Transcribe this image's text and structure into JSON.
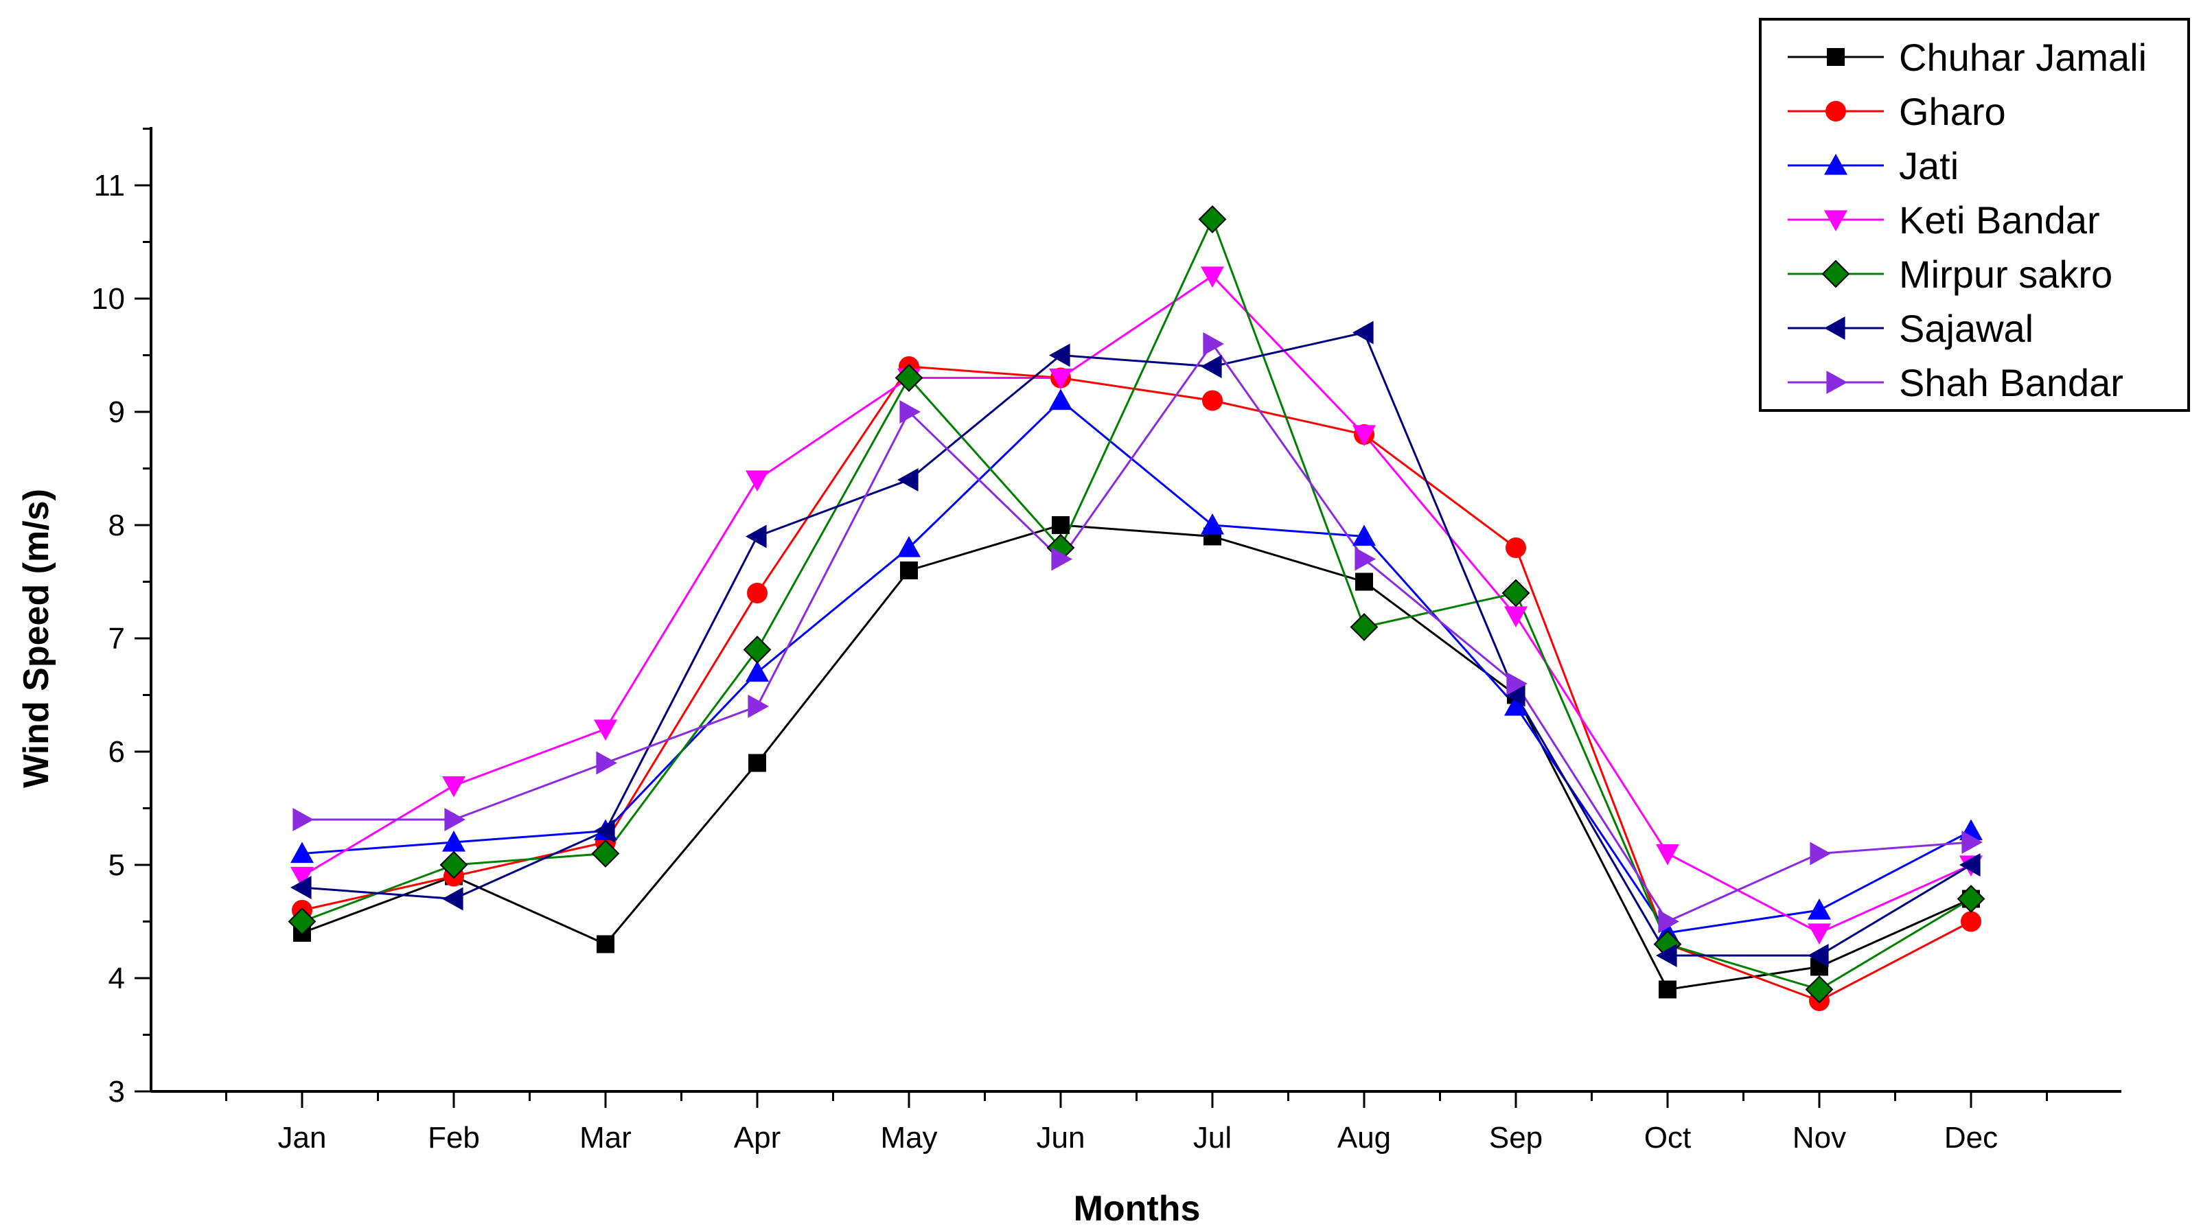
{
  "chart_data": {
    "type": "line",
    "title": "",
    "xlabel": "Months",
    "ylabel": "Wind Speed (m/s)",
    "ylim": [
      3,
      11.5
    ],
    "yticks": [
      3,
      4,
      5,
      6,
      7,
      8,
      9,
      10,
      11
    ],
    "categories": [
      "Jan",
      "Feb",
      "Mar",
      "Apr",
      "May",
      "Jun",
      "Jul",
      "Aug",
      "Sep",
      "Oct",
      "Nov",
      "Dec"
    ],
    "legend_position": "top-right",
    "series": [
      {
        "name": "Chuhar Jamali",
        "color": "#000000",
        "marker": "square",
        "values": [
          4.4,
          4.9,
          4.3,
          5.9,
          7.6,
          8.0,
          7.9,
          7.5,
          6.5,
          3.9,
          4.1,
          4.7
        ]
      },
      {
        "name": "Gharo",
        "color": "#ff0000",
        "marker": "circle",
        "values": [
          4.6,
          4.9,
          5.2,
          7.4,
          9.4,
          9.3,
          9.1,
          8.8,
          7.8,
          4.3,
          3.8,
          4.5
        ]
      },
      {
        "name": "Jati",
        "color": "#0000ff",
        "marker": "triangle-up",
        "values": [
          5.1,
          5.2,
          5.3,
          6.7,
          7.8,
          9.1,
          8.0,
          7.9,
          6.4,
          4.4,
          4.6,
          5.3
        ]
      },
      {
        "name": "Keti Bandar",
        "color": "#ff00ff",
        "marker": "triangle-down",
        "values": [
          4.9,
          5.7,
          6.2,
          8.4,
          9.3,
          9.3,
          10.2,
          8.8,
          7.2,
          5.1,
          4.4,
          5.0
        ]
      },
      {
        "name": "Mirpur sakro",
        "color": "#008000",
        "marker": "diamond",
        "values": [
          4.5,
          5.0,
          5.1,
          6.9,
          9.3,
          7.8,
          10.7,
          7.1,
          7.4,
          4.3,
          3.9,
          4.7
        ]
      },
      {
        "name": "Sajawal",
        "color": "#000080",
        "marker": "triangle-left",
        "values": [
          4.8,
          4.7,
          5.3,
          7.9,
          8.4,
          9.5,
          9.4,
          9.7,
          6.5,
          4.2,
          4.2,
          5.0
        ]
      },
      {
        "name": "Shah Bandar",
        "color": "#8a2be2",
        "marker": "triangle-right",
        "values": [
          5.4,
          5.4,
          5.9,
          6.4,
          9.0,
          7.7,
          9.6,
          7.7,
          6.6,
          4.5,
          5.1,
          5.2
        ]
      }
    ]
  }
}
